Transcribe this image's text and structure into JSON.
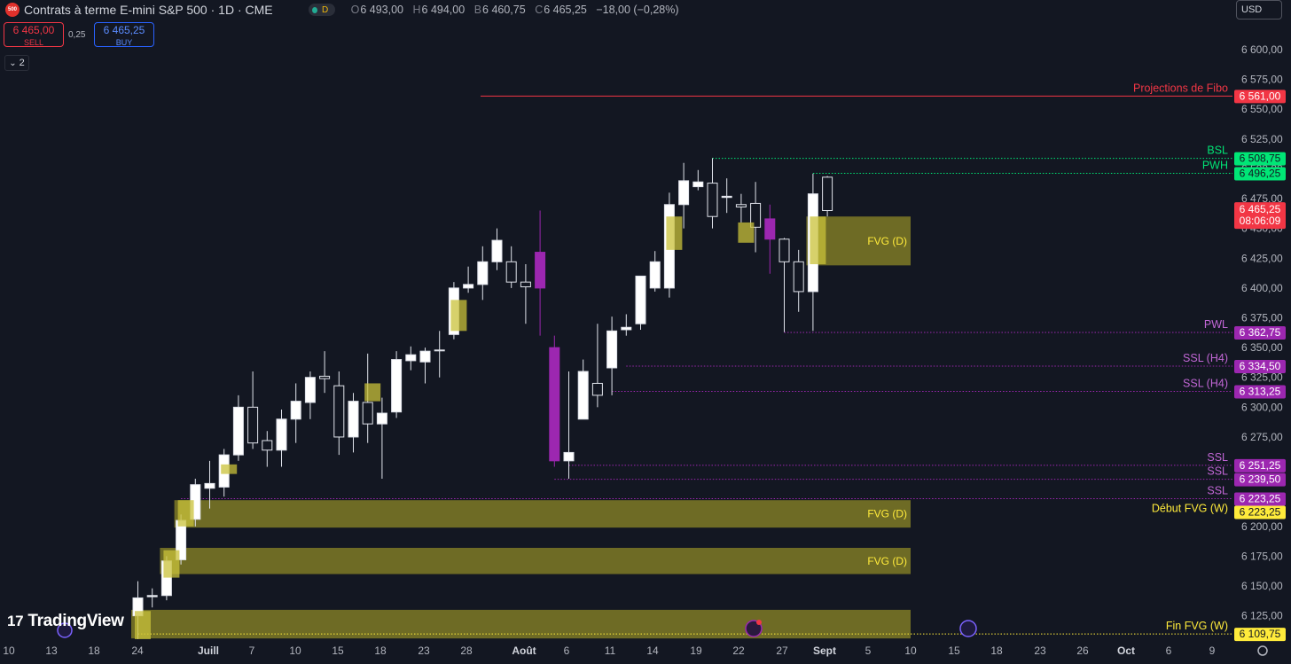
{
  "header": {
    "logo_text": "500",
    "title": "Contrats à terme E-mini S&P 500 · 1D · CME",
    "interval_badge": "D",
    "ohlc": [
      {
        "k": "O",
        "v": "6 493,00"
      },
      {
        "k": "H",
        "v": "6 494,00"
      },
      {
        "k": "B",
        "v": "6 460,75"
      },
      {
        "k": "C",
        "v": "6 465,25"
      }
    ],
    "change": "−18,00 (−0,28%)"
  },
  "trade": {
    "sell_price": "6 465,00",
    "sell_label": "SELL",
    "spread": "0,25",
    "buy_price": "6 465,25",
    "buy_label": "BUY"
  },
  "indicators_toggle": "2",
  "currency": "USD",
  "brand": "TradingView",
  "colors": {
    "background": "#131722",
    "candle_up": "#ffffff",
    "candle_down": "#131722",
    "fvg_zone": "#7f7a26",
    "fvg_bar": "#c9c13a",
    "purple": "#9c27b0",
    "red_level": "#f23645",
    "green_level": "#00e676",
    "yellow_label": "#ffeb3b"
  },
  "chart_data": {
    "type": "candlestick",
    "price_range": [
      6100,
      6617
    ],
    "y_ticks": [
      6125,
      6150,
      6175,
      6200,
      6225,
      6250,
      6275,
      6300,
      6325,
      6350,
      6375,
      6400,
      6425,
      6450,
      6475,
      6500,
      6525,
      6550,
      6575,
      6600
    ],
    "y_tick_labels": [
      "6 125,00",
      "6 150,00",
      "6 175,00",
      "6 200,00",
      "6 225,00",
      "6 250,00",
      "6 275,00",
      "6 300,00",
      "6 325,00",
      "6 350,00",
      "6 375,00",
      "6 400,00",
      "6 425,00",
      "6 450,00",
      "6 475,00",
      "6 500,00",
      "6 525,00",
      "6 550,00",
      "6 575,00",
      "6 600,00"
    ],
    "x_axis_labels": [
      "10",
      "13",
      "18",
      "24",
      "Juill",
      "7",
      "10",
      "15",
      "18",
      "23",
      "28",
      "Août",
      "6",
      "11",
      "14",
      "19",
      "22",
      "27",
      "Sept",
      "5",
      "10",
      "15",
      "18",
      "23",
      "26",
      "Oct",
      "6",
      "9"
    ],
    "x_axis_bold": [
      "Juill",
      "Août",
      "Sept",
      "Oct"
    ],
    "candles": [
      [
        6125,
        6154,
        6100,
        6140
      ],
      [
        6141,
        6148,
        6132,
        6142
      ],
      [
        6142,
        6175,
        6138,
        6171
      ],
      [
        6172,
        6210,
        6168,
        6205
      ],
      [
        6206,
        6240,
        6200,
        6235
      ],
      [
        6236,
        6255,
        6215,
        6232
      ],
      [
        6233,
        6265,
        6225,
        6260
      ],
      [
        6260,
        6310,
        6255,
        6300
      ],
      [
        6300,
        6330,
        6265,
        6270
      ],
      [
        6272,
        6280,
        6250,
        6264
      ],
      [
        6264,
        6298,
        6250,
        6290
      ],
      [
        6290,
        6320,
        6270,
        6305
      ],
      [
        6304,
        6330,
        6290,
        6325
      ],
      [
        6326,
        6347,
        6312,
        6324
      ],
      [
        6318,
        6330,
        6260,
        6275
      ],
      [
        6275,
        6312,
        6262,
        6305
      ],
      [
        6304,
        6345,
        6270,
        6286
      ],
      [
        6286,
        6308,
        6240,
        6295
      ],
      [
        6296,
        6347,
        6291,
        6340
      ],
      [
        6339,
        6351,
        6331,
        6344
      ],
      [
        6338,
        6350,
        6320,
        6347
      ],
      [
        6348,
        6364,
        6325,
        6348
      ],
      [
        6361,
        6405,
        6357,
        6400
      ],
      [
        6400,
        6418,
        6396,
        6403
      ],
      [
        6403,
        6435,
        6390,
        6422
      ],
      [
        6422,
        6450,
        6415,
        6440
      ],
      [
        6422,
        6435,
        6400,
        6405
      ],
      [
        6405,
        6420,
        6370,
        6401
      ],
      [
        6430,
        6465,
        6360,
        6400
      ],
      [
        6350,
        6360,
        6250,
        6255
      ],
      [
        6255,
        6330,
        6240,
        6262
      ],
      [
        6290,
        6340,
        6290,
        6330
      ],
      [
        6310,
        6370,
        6300,
        6320
      ],
      [
        6333,
        6376,
        6310,
        6364
      ],
      [
        6365,
        6378,
        6360,
        6367
      ],
      [
        6370,
        6410,
        6365,
        6410
      ],
      [
        6400,
        6431,
        6397,
        6422
      ],
      [
        6400,
        6480,
        6392,
        6470
      ],
      [
        6470,
        6505,
        6450,
        6490
      ],
      [
        6485,
        6499,
        6482,
        6489
      ],
      [
        6488,
        6509,
        6450,
        6460
      ],
      [
        6477,
        6492,
        6463,
        6476
      ],
      [
        6470,
        6479,
        6455,
        6468
      ],
      [
        6471,
        6489,
        6430,
        6451
      ],
      [
        6458,
        6470,
        6412,
        6441
      ],
      [
        6441,
        6442,
        6363,
        6422
      ],
      [
        6422,
        6432,
        6380,
        6397
      ],
      [
        6397,
        6496,
        6364,
        6479
      ],
      [
        6493,
        6494,
        6460,
        6465
      ]
    ],
    "candle_colors": {
      "8": "down",
      "9": "down",
      "13": "down",
      "14": "down",
      "16": "down",
      "26": "down",
      "27": "down",
      "28": "purple",
      "29": "purple",
      "32": "down",
      "40": "down",
      "42": "down",
      "43": "down",
      "44": "purple",
      "45": "down",
      "46": "down",
      "48": "down"
    },
    "candle_highlights": [
      {
        "i": 3,
        "top": 6222,
        "bottom": 6200
      },
      {
        "i": 2,
        "top": 6180,
        "bottom": 6157
      },
      {
        "i": 0,
        "top": 6129,
        "bottom": 6105
      },
      {
        "i": 6,
        "top": 6252,
        "bottom": 6244
      },
      {
        "i": 16,
        "top": 6320,
        "bottom": 6305
      },
      {
        "i": 22,
        "top": 6390,
        "bottom": 6364
      },
      {
        "i": 37,
        "top": 6460,
        "bottom": 6432
      },
      {
        "i": 42,
        "top": 6455,
        "bottom": 6438
      },
      {
        "i": 47,
        "top": 6460,
        "bottom": 6420
      }
    ],
    "zones": [
      {
        "from_index": 47,
        "top": 6460,
        "bottom": 6419,
        "label": "FVG (D)"
      },
      {
        "from_index": 3,
        "top": 6222,
        "bottom": 6199,
        "label": "FVG (D)"
      },
      {
        "from_index": 2,
        "top": 6182,
        "bottom": 6160,
        "label": "FVG (D)"
      },
      {
        "from_index": 0,
        "top": 6130,
        "bottom": 6106,
        "label": ""
      }
    ],
    "levels": [
      {
        "price": 6561.0,
        "label": "Projections de Fibo",
        "badge": "6 561,00",
        "color": "#f23645",
        "style": "solid",
        "from_index": 24
      },
      {
        "price": 6508.75,
        "label": "BSL",
        "badge": "6 508,75",
        "color": "#00e676",
        "style": "dotted",
        "from_index": 40
      },
      {
        "price": 6496.25,
        "label": "PWH",
        "badge": "6 496,25",
        "color": "#00e676",
        "style": "dotted",
        "from_index": 47
      },
      {
        "price": 6362.75,
        "label": "PWL",
        "badge": "6 362,75",
        "color": "#9c27b0",
        "style": "dotted",
        "from_index": 45
      },
      {
        "price": 6334.5,
        "label": "SSL (H4)",
        "badge": "6 334,50",
        "color": "#9c27b0",
        "style": "dotted",
        "from_index": 34
      },
      {
        "price": 6313.25,
        "label": "SSL (H4)",
        "badge": "6 313,25",
        "color": "#9c27b0",
        "style": "dotted",
        "from_index": 33
      },
      {
        "price": 6251.25,
        "label": "SSL",
        "badge": "6 251,25",
        "color": "#9c27b0",
        "style": "dotted",
        "from_index": 30
      },
      {
        "price": 6239.5,
        "label": "SSL",
        "badge": "6 239,50",
        "color": "#9c27b0",
        "style": "dotted",
        "from_index": 29
      },
      {
        "price": 6223.25,
        "label": "SSL",
        "badge": "6 223,25",
        "color": "#9c27b0",
        "style": "dotted",
        "from_index": 3
      },
      {
        "price": 6223.25,
        "label": "Début FVG (W)",
        "badge": "6 223,25",
        "color": "#ffeb3b",
        "style": "none",
        "from_index": 3
      },
      {
        "price": 6109.75,
        "label": "Fin FVG (W)",
        "badge": "6 109,75",
        "color": "#ffeb3b",
        "style": "dotted",
        "from_index": 0
      }
    ],
    "last_price": {
      "price": 6465.25,
      "badge": "6 465,25",
      "countdown": "08:06:09"
    }
  }
}
